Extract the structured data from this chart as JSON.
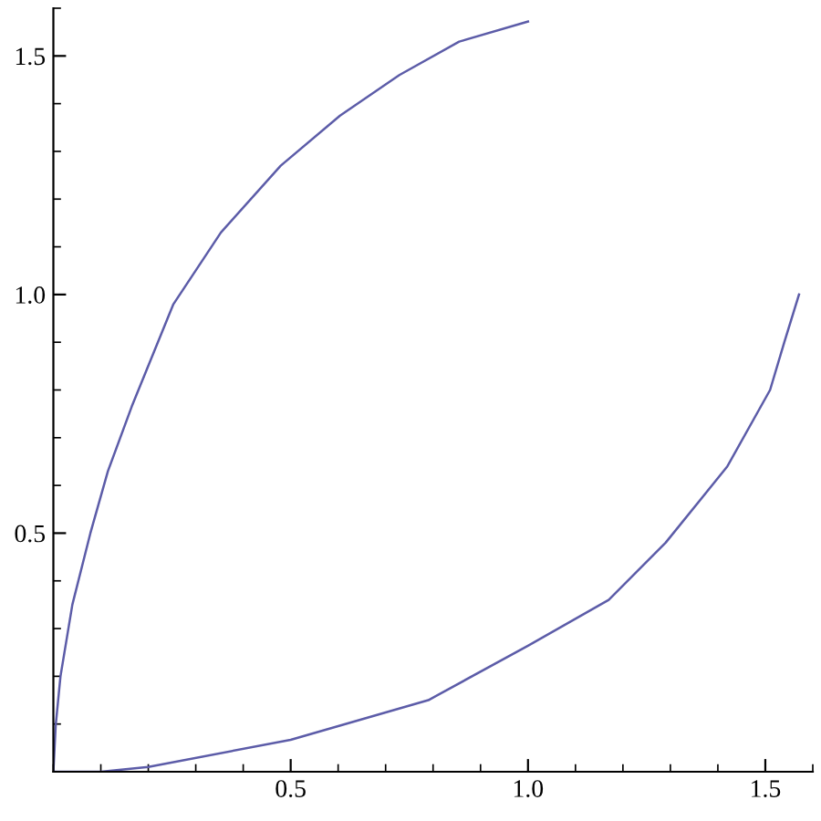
{
  "chart_data": {
    "type": "line",
    "series": [
      {
        "color": "#5c5ca8",
        "x": [
          0,
          0.005,
          0.015,
          0.04,
          0.078,
          0.115,
          0.165,
          0.253,
          0.353,
          0.479,
          0.604,
          0.729,
          0.855,
          1.0
        ],
        "values": [
          0,
          0.098,
          0.2,
          0.35,
          0.5,
          0.63,
          0.765,
          0.98,
          1.13,
          1.27,
          1.375,
          1.46,
          1.53,
          1.572
        ]
      },
      {
        "color": "#5c5ca8",
        "x": [
          0,
          0.1,
          0.2,
          0.5,
          0.79,
          1.0,
          1.17,
          1.29,
          1.42,
          1.51,
          1.54,
          1.571
        ],
        "values": [
          0,
          0,
          0.01,
          0.067,
          0.15,
          0.264,
          0.36,
          0.48,
          0.64,
          0.8,
          0.9,
          1.0
        ]
      }
    ],
    "xlim": [
      0,
      1.6
    ],
    "ylim": [
      0,
      1.6
    ],
    "xticks": [
      0.5,
      {
        "value": 1.0,
        "label": "1.0"
      },
      1.5
    ],
    "yticks": [
      0.5,
      {
        "value": 1.0,
        "label": "1.0"
      },
      1.5
    ],
    "grid": false,
    "legend": false,
    "line_style": "solid",
    "marker": "none"
  }
}
